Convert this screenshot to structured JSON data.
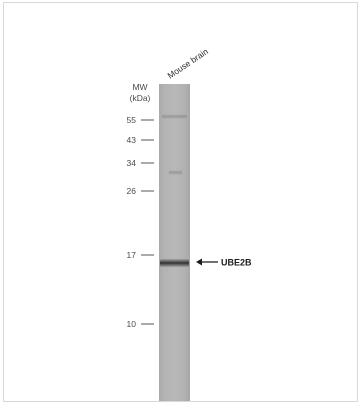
{
  "figure": {
    "mw_label": "MW",
    "mw_unit": "(kDa)",
    "lanes": [
      {
        "label": "Mouse brain"
      }
    ],
    "markers": [
      {
        "label": "55"
      },
      {
        "label": "43"
      },
      {
        "label": "34"
      },
      {
        "label": "26"
      },
      {
        "label": "17"
      },
      {
        "label": "10"
      }
    ],
    "target": {
      "label": "UBE2B"
    }
  }
}
